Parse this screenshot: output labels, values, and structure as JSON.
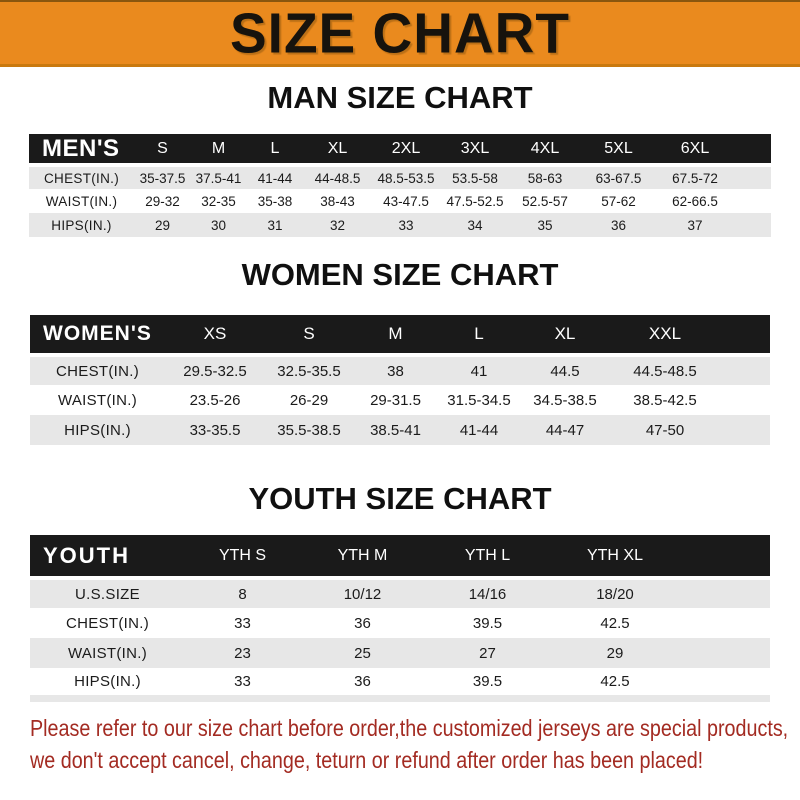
{
  "banner": {
    "title": "SIZE CHART"
  },
  "sections": [
    {
      "heading": "MAN SIZE CHART",
      "table": {
        "label": "MEN'S",
        "columns": [
          "S",
          "M",
          "L",
          "XL",
          "2XL",
          "3XL",
          "4XL",
          "5XL",
          "6XL"
        ],
        "rows": [
          {
            "label": "CHEST(IN.)",
            "values": [
              "35-37.5",
              "37.5-41",
              "41-44",
              "44-48.5",
              "48.5-53.5",
              "53.5-58",
              "58-63",
              "63-67.5",
              "67.5-72"
            ]
          },
          {
            "label": "WAIST(IN.)",
            "values": [
              "29-32",
              "32-35",
              "35-38",
              "38-43",
              "43-47.5",
              "47.5-52.5",
              "52.5-57",
              "57-62",
              "62-66.5"
            ]
          },
          {
            "label": "HIPS(IN.)",
            "values": [
              "29",
              "30",
              "31",
              "32",
              "33",
              "34",
              "35",
              "36",
              "37"
            ]
          }
        ]
      }
    },
    {
      "heading": "WOMEN SIZE CHART",
      "table": {
        "label": "WOMEN'S",
        "columns": [
          "XS",
          "S",
          "M",
          "L",
          "XL",
          "XXL"
        ],
        "rows": [
          {
            "label": "CHEST(IN.)",
            "values": [
              "29.5-32.5",
              "32.5-35.5",
              "38",
              "41",
              "44.5",
              "44.5-48.5"
            ]
          },
          {
            "label": "WAIST(IN.)",
            "values": [
              "23.5-26",
              "26-29",
              "29-31.5",
              "31.5-34.5",
              "34.5-38.5",
              "38.5-42.5"
            ]
          },
          {
            "label": "HIPS(IN.)",
            "values": [
              "33-35.5",
              "35.5-38.5",
              "38.5-41",
              "41-44",
              "44-47",
              "47-50"
            ]
          }
        ]
      }
    },
    {
      "heading": "YOUTH SIZE CHART",
      "table": {
        "label": "YOUTH",
        "columns": [
          "YTH S",
          "YTH M",
          "YTH L",
          "YTH XL"
        ],
        "rows": [
          {
            "label": "U.S.SIZE",
            "values": [
              "8",
              "10/12",
              "14/16",
              "18/20"
            ]
          },
          {
            "label": "CHEST(IN.)",
            "values": [
              "33",
              "36",
              "39.5",
              "42.5"
            ]
          },
          {
            "label": "WAIST(IN.)",
            "values": [
              "23",
              "25",
              "27",
              "29"
            ]
          },
          {
            "label": "HIPS(IN.)",
            "values": [
              "33",
              "36",
              "39.5",
              "42.5"
            ]
          }
        ]
      }
    }
  ],
  "footer": {
    "line1": "Please refer to our size chart before order,the customized jerseys are special products,",
    "line2": "we don't accept cancel, change, teturn or refund after order has been placed!"
  },
  "colors": {
    "banner_orange": "#EA8A1E",
    "header_bar_black": "#1A1A1A",
    "row_stripe_gray": "#E7E7E7",
    "footer_note_red": "#A32B22"
  }
}
